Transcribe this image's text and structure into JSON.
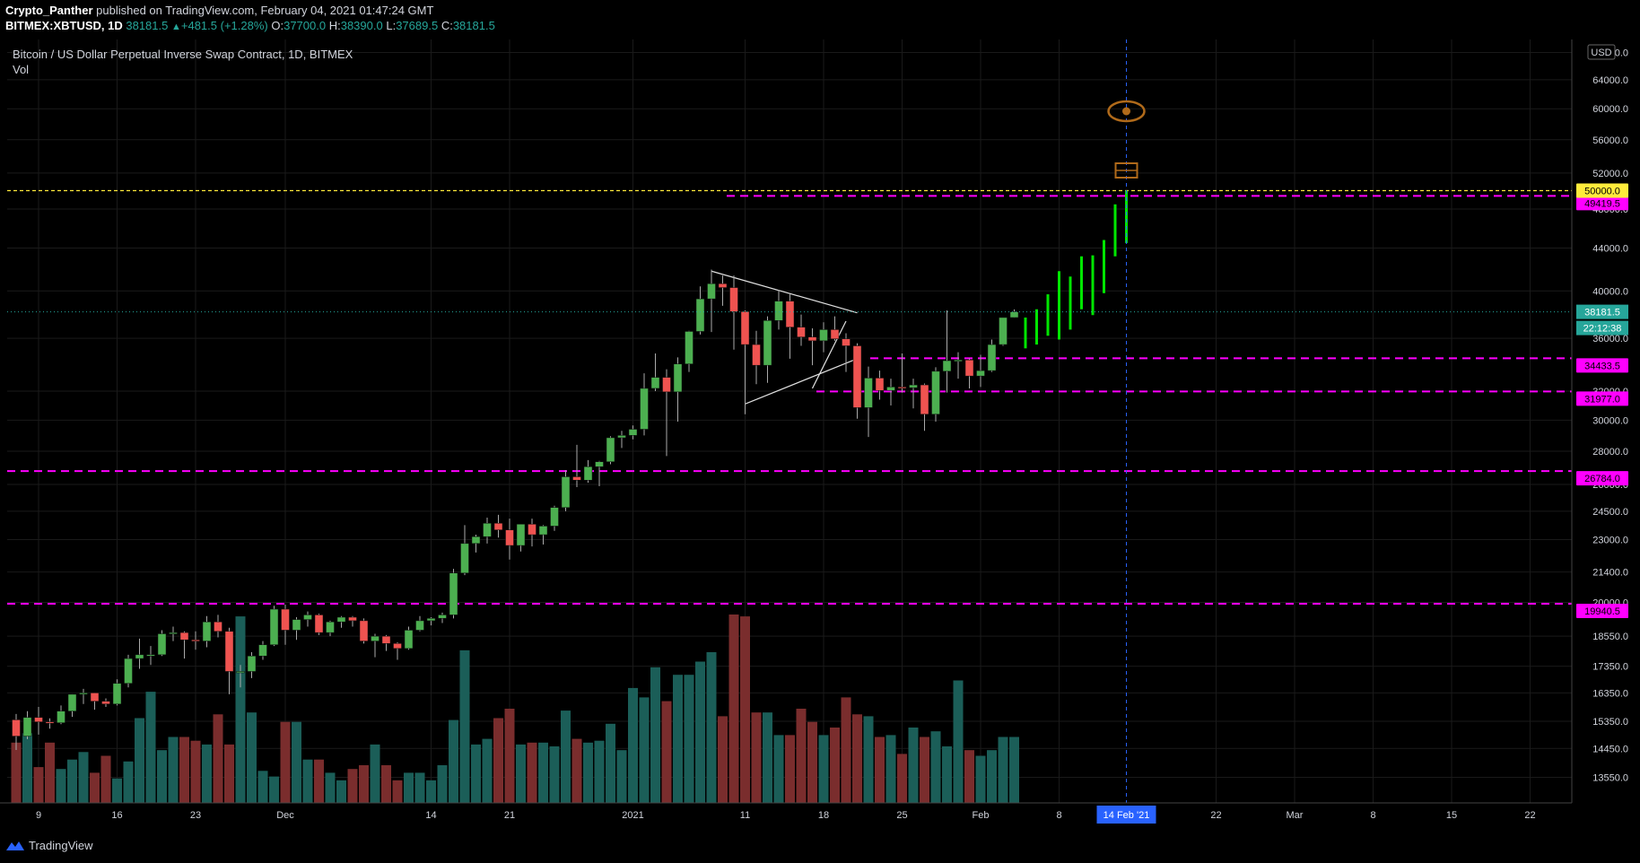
{
  "header": {
    "author": "Crypto_Panther",
    "published_text": "published on TradingView.com, February 04, 2021 01:47:24 GMT",
    "symbol": "BITMEX:XBTUSD, 1D",
    "last": "38181.5",
    "change": "+481.5 (+1.28%)",
    "o_label": "O:",
    "o": "37700.0",
    "h_label": "H:",
    "h": "38390.0",
    "l_label": "L:",
    "l": "37689.5",
    "c_label": "C:",
    "c": "38181.5"
  },
  "legend": {
    "title": "Bitcoin / US Dollar Perpetual Inverse Swap Contract, 1D, BITMEX",
    "vol_label": "Vol"
  },
  "footer": {
    "brand": "TradingView"
  },
  "colors": {
    "up": "#26a69a",
    "up_body": "#4caf50",
    "down": "#ef5350",
    "vol_up": "#1b5e58",
    "vol_down": "#7a2d2d",
    "projection": "#00e600",
    "level": "#ff00ff",
    "target": "#ffeb3b",
    "annotation": "#b06a1a"
  },
  "chart_data": {
    "type": "candlestick",
    "title": "Bitcoin / US Dollar Perpetual Inverse Swap Contract, 1D, BITMEX",
    "currency": "USD",
    "y_scale": "log",
    "ylim": [
      12800,
      70000
    ],
    "y_ticks": [
      "68000.0",
      "64000.0",
      "60000.0",
      "56000.0",
      "52000.0",
      "48000.0",
      "44000.0",
      "40000.0",
      "36000.0",
      "32000.0",
      "30000.0",
      "28000.0",
      "26000.0",
      "24500.0",
      "23000.0",
      "21400.0",
      "20000.0",
      "18550.0",
      "17350.0",
      "16350.0",
      "15350.0",
      "14450.0",
      "13550.0"
    ],
    "x_ticks": [
      "9",
      "16",
      "23",
      "Dec",
      "14",
      "21",
      "2021",
      "11",
      "18",
      "25",
      "Feb",
      "8",
      "14 Feb '21",
      "22",
      "Mar",
      "8",
      "15",
      "22"
    ],
    "candles": [
      {
        "date": "2020-11-07",
        "o": 15400,
        "h": 15600,
        "l": 14400,
        "c": 14850
      },
      {
        "date": "2020-11-08",
        "o": 14850,
        "h": 15700,
        "l": 14750,
        "c": 15480
      },
      {
        "date": "2020-11-09",
        "o": 15480,
        "h": 15850,
        "l": 14900,
        "c": 15330
      },
      {
        "date": "2020-11-10",
        "o": 15330,
        "h": 15450,
        "l": 15100,
        "c": 15300
      },
      {
        "date": "2020-11-11",
        "o": 15300,
        "h": 15900,
        "l": 15250,
        "c": 15700
      },
      {
        "date": "2020-11-12",
        "o": 15700,
        "h": 16300,
        "l": 15500,
        "c": 16300
      },
      {
        "date": "2020-11-13",
        "o": 16300,
        "h": 16500,
        "l": 15950,
        "c": 16350
      },
      {
        "date": "2020-11-14",
        "o": 16350,
        "h": 16350,
        "l": 15750,
        "c": 16050
      },
      {
        "date": "2020-11-15",
        "o": 16050,
        "h": 16150,
        "l": 15850,
        "c": 15950
      },
      {
        "date": "2020-11-16",
        "o": 15950,
        "h": 16850,
        "l": 15900,
        "c": 16700
      },
      {
        "date": "2020-11-17",
        "o": 16700,
        "h": 17800,
        "l": 16550,
        "c": 17650
      },
      {
        "date": "2020-11-18",
        "o": 17650,
        "h": 18450,
        "l": 17250,
        "c": 17800
      },
      {
        "date": "2020-11-19",
        "o": 17800,
        "h": 18150,
        "l": 17400,
        "c": 17800
      },
      {
        "date": "2020-11-20",
        "o": 17800,
        "h": 18800,
        "l": 17750,
        "c": 18650
      },
      {
        "date": "2020-11-21",
        "o": 18650,
        "h": 18950,
        "l": 18350,
        "c": 18700
      },
      {
        "date": "2020-11-22",
        "o": 18700,
        "h": 18750,
        "l": 17650,
        "c": 18400
      },
      {
        "date": "2020-11-23",
        "o": 18400,
        "h": 18750,
        "l": 18000,
        "c": 18350
      },
      {
        "date": "2020-11-24",
        "o": 18350,
        "h": 19400,
        "l": 18100,
        "c": 19150
      },
      {
        "date": "2020-11-25",
        "o": 19150,
        "h": 19450,
        "l": 18500,
        "c": 18750
      },
      {
        "date": "2020-11-26",
        "o": 18750,
        "h": 18900,
        "l": 16300,
        "c": 17150
      },
      {
        "date": "2020-11-27",
        "o": 17150,
        "h": 17400,
        "l": 16550,
        "c": 17150
      },
      {
        "date": "2020-11-28",
        "o": 17150,
        "h": 17900,
        "l": 16900,
        "c": 17750
      },
      {
        "date": "2020-11-29",
        "o": 17750,
        "h": 18350,
        "l": 17600,
        "c": 18200
      },
      {
        "date": "2020-11-30",
        "o": 18200,
        "h": 19850,
        "l": 18150,
        "c": 19700
      },
      {
        "date": "2020-12-01",
        "o": 19700,
        "h": 19900,
        "l": 18200,
        "c": 18800
      },
      {
        "date": "2020-12-02",
        "o": 18800,
        "h": 19350,
        "l": 18400,
        "c": 19250
      },
      {
        "date": "2020-12-03",
        "o": 19250,
        "h": 19600,
        "l": 18950,
        "c": 19450
      },
      {
        "date": "2020-12-04",
        "o": 19450,
        "h": 19500,
        "l": 18600,
        "c": 18700
      },
      {
        "date": "2020-12-05",
        "o": 18700,
        "h": 19200,
        "l": 18550,
        "c": 19150
      },
      {
        "date": "2020-12-06",
        "o": 19150,
        "h": 19400,
        "l": 18900,
        "c": 19350
      },
      {
        "date": "2020-12-07",
        "o": 19350,
        "h": 19400,
        "l": 18950,
        "c": 19200
      },
      {
        "date": "2020-12-08",
        "o": 19200,
        "h": 19300,
        "l": 18250,
        "c": 18350
      },
      {
        "date": "2020-12-09",
        "o": 18350,
        "h": 18650,
        "l": 17700,
        "c": 18550
      },
      {
        "date": "2020-12-10",
        "o": 18550,
        "h": 18600,
        "l": 17950,
        "c": 18250
      },
      {
        "date": "2020-12-11",
        "o": 18250,
        "h": 18300,
        "l": 17600,
        "c": 18050
      },
      {
        "date": "2020-12-12",
        "o": 18050,
        "h": 18950,
        "l": 18000,
        "c": 18800
      },
      {
        "date": "2020-12-13",
        "o": 18800,
        "h": 19400,
        "l": 18750,
        "c": 19200
      },
      {
        "date": "2020-12-14",
        "o": 19200,
        "h": 19350,
        "l": 19000,
        "c": 19300
      },
      {
        "date": "2020-12-15",
        "o": 19300,
        "h": 19550,
        "l": 19100,
        "c": 19450
      },
      {
        "date": "2020-12-16",
        "o": 19450,
        "h": 21550,
        "l": 19300,
        "c": 21350
      },
      {
        "date": "2020-12-17",
        "o": 21350,
        "h": 23750,
        "l": 21250,
        "c": 22800
      },
      {
        "date": "2020-12-18",
        "o": 22800,
        "h": 23250,
        "l": 22350,
        "c": 23150
      },
      {
        "date": "2020-12-19",
        "o": 23150,
        "h": 24150,
        "l": 22800,
        "c": 23850
      },
      {
        "date": "2020-12-20",
        "o": 23850,
        "h": 24300,
        "l": 23100,
        "c": 23500
      },
      {
        "date": "2020-12-21",
        "o": 23500,
        "h": 24100,
        "l": 22000,
        "c": 22700
      },
      {
        "date": "2020-12-22",
        "o": 22700,
        "h": 23800,
        "l": 22400,
        "c": 23800
      },
      {
        "date": "2020-12-23",
        "o": 23800,
        "h": 24100,
        "l": 22650,
        "c": 23250
      },
      {
        "date": "2020-12-24",
        "o": 23250,
        "h": 23750,
        "l": 22750,
        "c": 23700
      },
      {
        "date": "2020-12-25",
        "o": 23700,
        "h": 24800,
        "l": 23450,
        "c": 24700
      },
      {
        "date": "2020-12-26",
        "o": 24700,
        "h": 26850,
        "l": 24500,
        "c": 26450
      },
      {
        "date": "2020-12-27",
        "o": 26450,
        "h": 28400,
        "l": 25850,
        "c": 26250
      },
      {
        "date": "2020-12-28",
        "o": 26250,
        "h": 27450,
        "l": 26100,
        "c": 27050
      },
      {
        "date": "2020-12-29",
        "o": 27050,
        "h": 27400,
        "l": 25900,
        "c": 27350
      },
      {
        "date": "2020-12-30",
        "o": 27350,
        "h": 28950,
        "l": 27200,
        "c": 28850
      },
      {
        "date": "2020-12-31",
        "o": 28850,
        "h": 29300,
        "l": 28200,
        "c": 29000
      },
      {
        "date": "2021-01-01",
        "o": 29000,
        "h": 29650,
        "l": 28750,
        "c": 29400
      },
      {
        "date": "2021-01-02",
        "o": 29400,
        "h": 33300,
        "l": 29000,
        "c": 32200
      },
      {
        "date": "2021-01-03",
        "o": 32200,
        "h": 34800,
        "l": 32000,
        "c": 33000
      },
      {
        "date": "2021-01-04",
        "o": 33000,
        "h": 33600,
        "l": 27700,
        "c": 31950
      },
      {
        "date": "2021-01-05",
        "o": 31950,
        "h": 34500,
        "l": 29900,
        "c": 34000
      },
      {
        "date": "2021-01-06",
        "o": 34000,
        "h": 36600,
        "l": 33400,
        "c": 36550
      },
      {
        "date": "2021-01-07",
        "o": 36550,
        "h": 40400,
        "l": 36300,
        "c": 39300
      },
      {
        "date": "2021-01-08",
        "o": 39300,
        "h": 41950,
        "l": 36500,
        "c": 40650
      },
      {
        "date": "2021-01-09",
        "o": 40650,
        "h": 41400,
        "l": 38700,
        "c": 40300
      },
      {
        "date": "2021-01-10",
        "o": 40300,
        "h": 41400,
        "l": 35100,
        "c": 38200
      },
      {
        "date": "2021-01-11",
        "o": 38200,
        "h": 38300,
        "l": 30400,
        "c": 35500
      },
      {
        "date": "2021-01-12",
        "o": 35500,
        "h": 36600,
        "l": 32500,
        "c": 33900
      },
      {
        "date": "2021-01-13",
        "o": 33900,
        "h": 37800,
        "l": 32600,
        "c": 37450
      },
      {
        "date": "2021-01-14",
        "o": 37450,
        "h": 40100,
        "l": 36700,
        "c": 39100
      },
      {
        "date": "2021-01-15",
        "o": 39100,
        "h": 39700,
        "l": 34400,
        "c": 36900
      },
      {
        "date": "2021-01-16",
        "o": 36900,
        "h": 37950,
        "l": 35400,
        "c": 36100
      },
      {
        "date": "2021-01-17",
        "o": 36100,
        "h": 36800,
        "l": 33900,
        "c": 35800
      },
      {
        "date": "2021-01-18",
        "o": 35800,
        "h": 37300,
        "l": 34900,
        "c": 36700
      },
      {
        "date": "2021-01-19",
        "o": 36700,
        "h": 37800,
        "l": 35800,
        "c": 35950
      },
      {
        "date": "2021-01-20",
        "o": 35950,
        "h": 36400,
        "l": 33400,
        "c": 35400
      },
      {
        "date": "2021-01-21",
        "o": 35400,
        "h": 35600,
        "l": 30100,
        "c": 30850
      },
      {
        "date": "2021-01-22",
        "o": 30850,
        "h": 33800,
        "l": 28900,
        "c": 32950
      },
      {
        "date": "2021-01-23",
        "o": 32950,
        "h": 33500,
        "l": 31400,
        "c": 32050
      },
      {
        "date": "2021-01-24",
        "o": 32050,
        "h": 32900,
        "l": 31000,
        "c": 32300
      },
      {
        "date": "2021-01-25",
        "o": 32300,
        "h": 34800,
        "l": 31900,
        "c": 32250
      },
      {
        "date": "2021-01-26",
        "o": 32250,
        "h": 32900,
        "l": 30800,
        "c": 32450
      },
      {
        "date": "2021-01-27",
        "o": 32450,
        "h": 32550,
        "l": 29300,
        "c": 30400
      },
      {
        "date": "2021-01-28",
        "o": 30400,
        "h": 33750,
        "l": 29900,
        "c": 33450
      },
      {
        "date": "2021-01-29",
        "o": 33450,
        "h": 38300,
        "l": 31900,
        "c": 34250
      },
      {
        "date": "2021-01-30",
        "o": 34250,
        "h": 34900,
        "l": 32900,
        "c": 34300
      },
      {
        "date": "2021-01-31",
        "o": 34300,
        "h": 34400,
        "l": 32200,
        "c": 33100
      },
      {
        "date": "2021-02-01",
        "o": 33100,
        "h": 34700,
        "l": 32300,
        "c": 33500
      },
      {
        "date": "2021-02-02",
        "o": 33500,
        "h": 35900,
        "l": 33400,
        "c": 35500
      },
      {
        "date": "2021-02-03",
        "o": 35500,
        "h": 37700,
        "l": 35400,
        "c": 37700
      },
      {
        "date": "2021-02-04",
        "o": 37700,
        "h": 38390,
        "l": 37689.5,
        "c": 38181.5
      }
    ],
    "volume_relative": [
      0.32,
      0.37,
      0.19,
      0.32,
      0.18,
      0.23,
      0.27,
      0.16,
      0.25,
      0.13,
      0.22,
      0.45,
      0.59,
      0.28,
      0.35,
      0.35,
      0.33,
      0.31,
      0.47,
      0.31,
      0.99,
      0.48,
      0.17,
      0.14,
      0.43,
      0.43,
      0.23,
      0.23,
      0.16,
      0.12,
      0.18,
      0.2,
      0.31,
      0.2,
      0.12,
      0.16,
      0.16,
      0.12,
      0.2,
      0.44,
      0.81,
      0.31,
      0.34,
      0.45,
      0.5,
      0.31,
      0.32,
      0.32,
      0.3,
      0.49,
      0.34,
      0.32,
      0.33,
      0.42,
      0.28,
      0.61,
      0.56,
      0.72,
      0.54,
      0.68,
      0.68,
      0.75,
      0.8,
      0.46,
      1.0,
      0.99,
      0.48,
      0.48,
      0.36,
      0.36,
      0.5,
      0.43,
      0.36,
      0.4,
      0.56,
      0.47,
      0.46,
      0.35,
      0.36,
      0.26,
      0.4,
      0.35,
      0.38,
      0.3,
      0.65,
      0.28,
      0.25,
      0.28,
      0.35,
      0.35
    ],
    "projection": {
      "from": "2021-02-05",
      "to": "2021-02-14",
      "segments": [
        {
          "o": 35200,
          "c": 37700
        },
        {
          "o": 35500,
          "c": 38400
        },
        {
          "o": 36200,
          "c": 39700
        },
        {
          "o": 35900,
          "c": 41800
        },
        {
          "o": 36700,
          "c": 41300
        },
        {
          "o": 38400,
          "c": 43200
        },
        {
          "o": 37900,
          "c": 43300
        },
        {
          "o": 39800,
          "c": 44800
        },
        {
          "o": 43200,
          "c": 48500
        },
        {
          "o": 44500,
          "c": 50000
        }
      ]
    },
    "levels": [
      {
        "value": 49419.5,
        "label": "49419.5",
        "color": "#ff00ff"
      },
      {
        "value": 34433.5,
        "label": "34433.5",
        "color": "#ff00ff"
      },
      {
        "value": 31977.0,
        "label": "31977.0",
        "color": "#ff00ff"
      },
      {
        "value": 26784.0,
        "label": "26784.0",
        "color": "#ff00ff"
      },
      {
        "value": 19940.5,
        "label": "19940.5",
        "color": "#ff00ff"
      },
      {
        "value": 50000.0,
        "label": "50000.0",
        "color": "#ffeb3b"
      }
    ],
    "price_label": {
      "value": 38181.5,
      "label": "38181.5",
      "countdown": "22:12:38"
    },
    "cursor_date": "14 Feb '21",
    "triangle": {
      "top": [
        {
          "date": "2021-01-08",
          "v": 41800
        },
        {
          "date": "2021-01-21",
          "v": 38100
        }
      ],
      "bottom": [
        {
          "date": "2021-01-11",
          "v": 31100
        },
        {
          "date": "2021-01-21",
          "v": 34400
        }
      ],
      "inner": [
        {
          "date": "2021-01-17",
          "v": 32200
        },
        {
          "date": "2021-01-20",
          "v": 37400
        }
      ]
    }
  }
}
